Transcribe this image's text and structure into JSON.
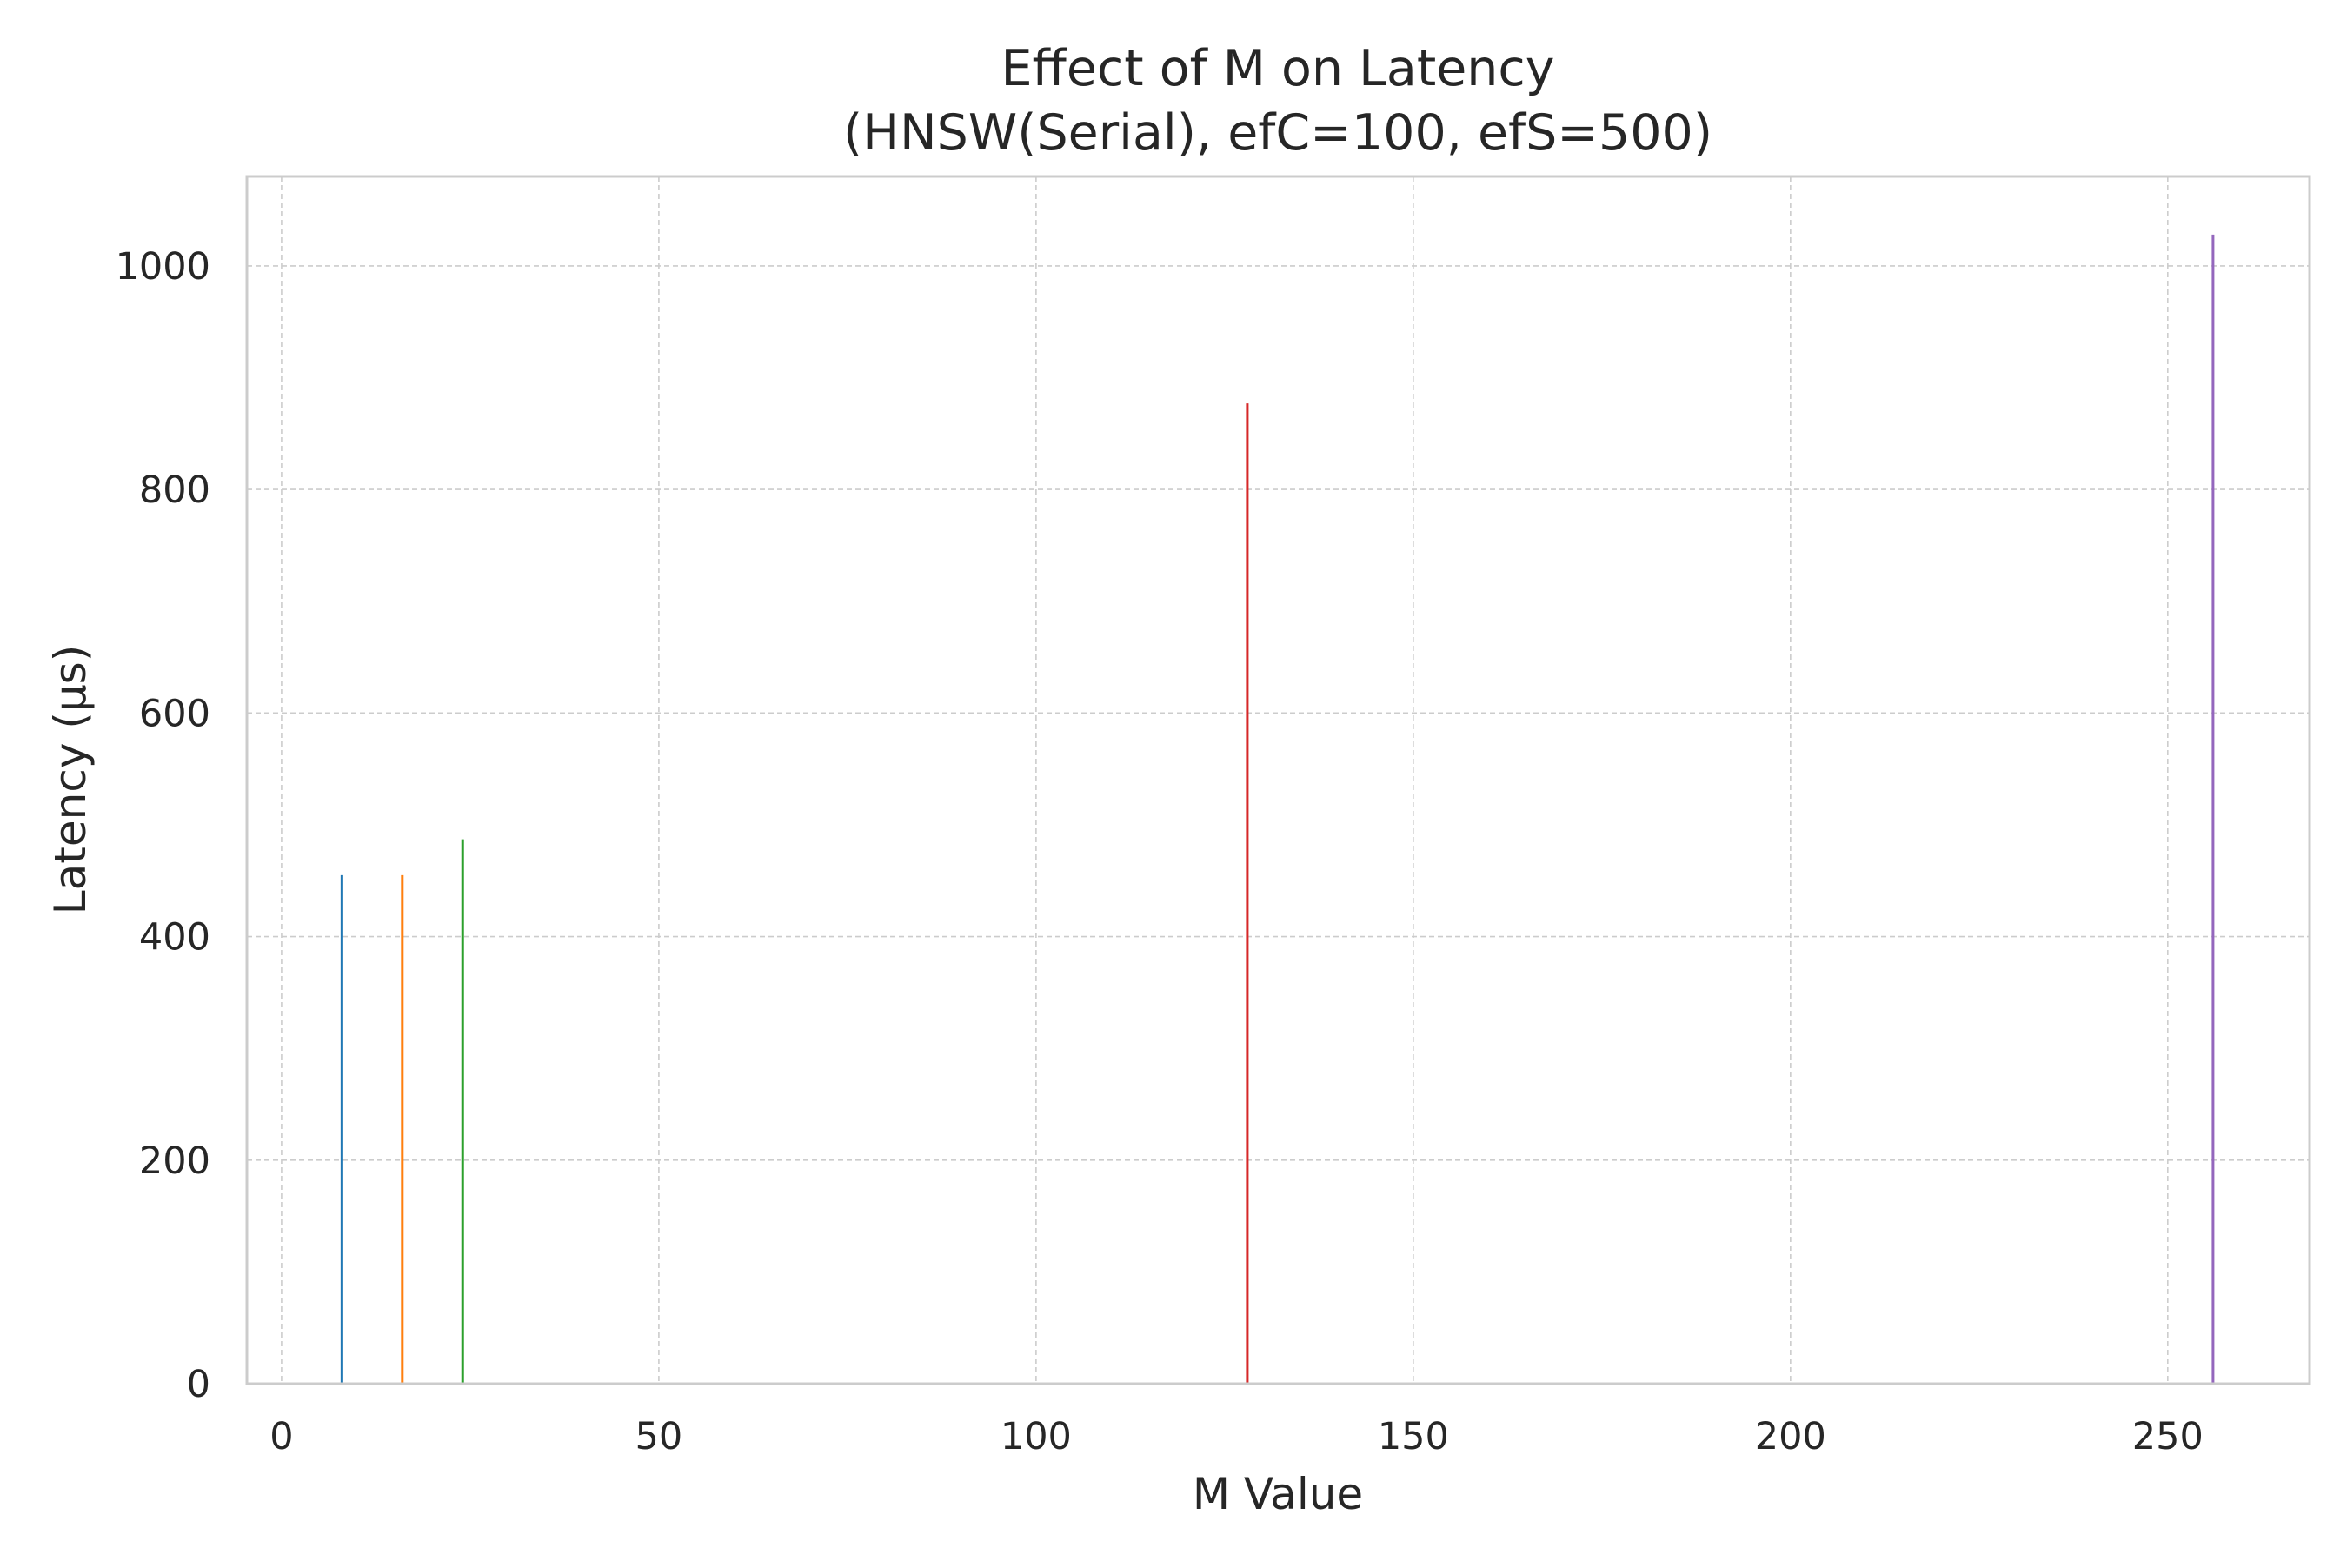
{
  "chart_data": {
    "type": "bar",
    "title": "Effect of M on Latency",
    "subtitle": "(HNSW(Serial), efC=100, efS=500)",
    "xlabel": "M Value",
    "ylabel": "Latency (µs)",
    "xlim": [
      -4.6,
      268.8
    ],
    "ylim": [
      0,
      1080
    ],
    "xticks": [
      0,
      50,
      100,
      150,
      200,
      250
    ],
    "yticks": [
      0,
      200,
      400,
      600,
      800,
      1000
    ],
    "grid": true,
    "legend": "none",
    "bars": [
      {
        "x": 8,
        "value": 455,
        "color": "#1f77b4"
      },
      {
        "x": 16,
        "value": 455,
        "color": "#ff7f0e"
      },
      {
        "x": 24,
        "value": 487,
        "color": "#2ca02c"
      },
      {
        "x": 128,
        "value": 877,
        "color": "#d62728"
      },
      {
        "x": 256,
        "value": 1028,
        "color": "#9467bd"
      }
    ]
  }
}
